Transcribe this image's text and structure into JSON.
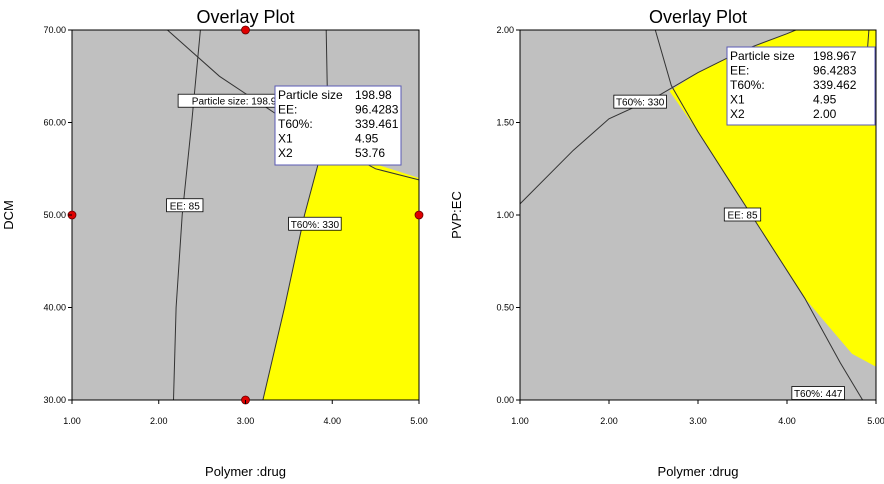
{
  "chart_data": [
    {
      "type": "contour",
      "title": "Overlay Plot",
      "xlabel": "Polymer :drug",
      "ylabel": "DCM",
      "xlim": [
        1.0,
        5.0
      ],
      "ylim": [
        30.0,
        70.0
      ],
      "x_ticks": [
        "1.00",
        "2.00",
        "3.00",
        "4.00",
        "5.00"
      ],
      "y_ticks": [
        "30.00",
        "40.00",
        "50.00",
        "60.00",
        "70.00"
      ],
      "colors": {
        "region": "#c0c0c0",
        "feasible": "#ffff00",
        "point": "#e00000"
      },
      "contours": [
        {
          "label": "EE: 85",
          "label_at": [
            2.3,
            51
          ],
          "points": [
            [
              2.17,
              30
            ],
            [
              2.2,
              40
            ],
            [
              2.27,
              50
            ],
            [
              2.38,
              60
            ],
            [
              2.48,
              70
            ]
          ]
        },
        {
          "label": "T60%: 330",
          "label_at": [
            3.8,
            49
          ],
          "points": [
            [
              3.2,
              30
            ],
            [
              3.45,
              40
            ],
            [
              3.68,
              50
            ],
            [
              3.88,
              57
            ],
            [
              4.15,
              57.5
            ]
          ]
        },
        {
          "label": "Particle size: 198.98",
          "label_at": [
            2.9,
            62.3
          ],
          "points": [
            [
              2.1,
              70
            ],
            [
              2.7,
              65
            ],
            [
              3.5,
              60
            ],
            [
              4.5,
              55
            ],
            [
              5.0,
              53.8
            ]
          ]
        },
        {
          "label": "",
          "points": [
            [
              3.93,
              70
            ],
            [
              3.95,
              60
            ],
            [
              3.95,
              57
            ]
          ]
        }
      ],
      "feasible_region": [
        [
          3.2,
          30
        ],
        [
          5.0,
          30
        ],
        [
          5.0,
          54
        ],
        [
          4.4,
          55.8
        ],
        [
          3.95,
          56.5
        ],
        [
          3.88,
          57
        ],
        [
          3.68,
          50
        ],
        [
          3.45,
          40
        ]
      ],
      "design_points": [
        [
          1.0,
          50
        ],
        [
          3.0,
          70
        ],
        [
          3.0,
          30
        ],
        [
          5.0,
          50
        ]
      ],
      "flag": {
        "at": [
          4.95,
          53.76
        ],
        "rows": [
          {
            "name": "Particle size",
            "value": "198.98"
          },
          {
            "name": "EE:",
            "value": "96.4283"
          },
          {
            "name": "T60%:",
            "value": "339.461"
          },
          {
            "name": "X1",
            "value": "4.95"
          },
          {
            "name": "X2",
            "value": "53.76"
          }
        ]
      }
    },
    {
      "type": "contour",
      "title": "Overlay Plot",
      "xlabel": "Polymer :drug",
      "ylabel": "PVP:EC",
      "xlim": [
        1.0,
        5.0
      ],
      "ylim": [
        0.0,
        2.0
      ],
      "x_ticks": [
        "1.00",
        "2.00",
        "3.00",
        "4.00",
        "5.00"
      ],
      "y_ticks": [
        "0.00",
        "0.50",
        "1.00",
        "1.50",
        "2.00"
      ],
      "colors": {
        "region": "#c0c0c0",
        "feasible": "#ffff00"
      },
      "contours": [
        {
          "label": "T60%: 330",
          "label_at": [
            2.35,
            1.61
          ],
          "points": [
            [
              1.0,
              1.06
            ],
            [
              1.6,
              1.35
            ],
            [
              2.0,
              1.52
            ],
            [
              2.5,
              1.63
            ],
            [
              3.0,
              1.77
            ],
            [
              3.5,
              1.89
            ],
            [
              4.0,
              1.98
            ],
            [
              4.1,
              2.0
            ]
          ]
        },
        {
          "label": "EE: 85",
          "label_at": [
            3.5,
            1.0
          ],
          "points": [
            [
              2.52,
              2.0
            ],
            [
              2.7,
              1.7
            ],
            [
              3.0,
              1.45
            ],
            [
              3.4,
              1.15
            ],
            [
              3.8,
              0.85
            ],
            [
              4.2,
              0.55
            ],
            [
              4.6,
              0.2
            ],
            [
              4.85,
              0.0
            ]
          ]
        },
        {
          "label": "T60%: 447",
          "label_at": [
            4.35,
            0.035
          ],
          "points": []
        },
        {
          "label": "",
          "points": [
            [
              4.92,
              2.0
            ],
            [
              4.9,
              1.87
            ],
            [
              4.95,
              1.83
            ],
            [
              5.0,
              1.84
            ]
          ]
        }
      ],
      "feasible_region": [
        [
          2.68,
          1.67
        ],
        [
          3.0,
          1.77
        ],
        [
          3.5,
          1.89
        ],
        [
          4.0,
          1.98
        ],
        [
          4.1,
          2.0
        ],
        [
          5.0,
          2.0
        ],
        [
          5.0,
          0.18
        ],
        [
          4.73,
          0.25
        ],
        [
          4.2,
          0.55
        ],
        [
          3.8,
          0.85
        ],
        [
          3.4,
          1.15
        ],
        [
          3.0,
          1.45
        ]
      ],
      "design_points": [],
      "flag": {
        "at": [
          4.95,
          2.0
        ],
        "rows": [
          {
            "name": "Particle size",
            "value": "198.967"
          },
          {
            "name": "EE:",
            "value": "96.4283"
          },
          {
            "name": "T60%:",
            "value": "339.462"
          },
          {
            "name": "X1",
            "value": "4.95"
          },
          {
            "name": "X2",
            "value": "2.00"
          }
        ]
      }
    }
  ]
}
